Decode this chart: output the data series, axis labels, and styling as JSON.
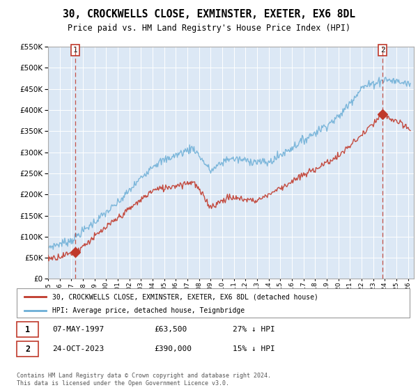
{
  "title": "30, CROCKWELLS CLOSE, EXMINSTER, EXETER, EX6 8DL",
  "subtitle": "Price paid vs. HM Land Registry's House Price Index (HPI)",
  "legend_line1": "30, CROCKWELLS CLOSE, EXMINSTER, EXETER, EX6 8DL (detached house)",
  "legend_line2": "HPI: Average price, detached house, Teignbridge",
  "transaction1_date": "07-MAY-1997",
  "transaction1_price": "£63,500",
  "transaction1_hpi": "27% ↓ HPI",
  "transaction2_date": "24-OCT-2023",
  "transaction2_price": "£390,000",
  "transaction2_hpi": "15% ↓ HPI",
  "footnote": "Contains HM Land Registry data © Crown copyright and database right 2024.\nThis data is licensed under the Open Government Licence v3.0.",
  "hpi_color": "#6baed6",
  "price_color": "#c0392b",
  "dashed_line_color": "#c0392b",
  "background_color": "#dce8f5",
  "grid_color": "#ffffff",
  "ylim": [
    0,
    550000
  ],
  "xlim_start": 1995.0,
  "xlim_end": 2026.5,
  "transaction1_year": 1997.36,
  "transaction1_value": 63500,
  "transaction2_year": 2023.81,
  "transaction2_value": 390000
}
